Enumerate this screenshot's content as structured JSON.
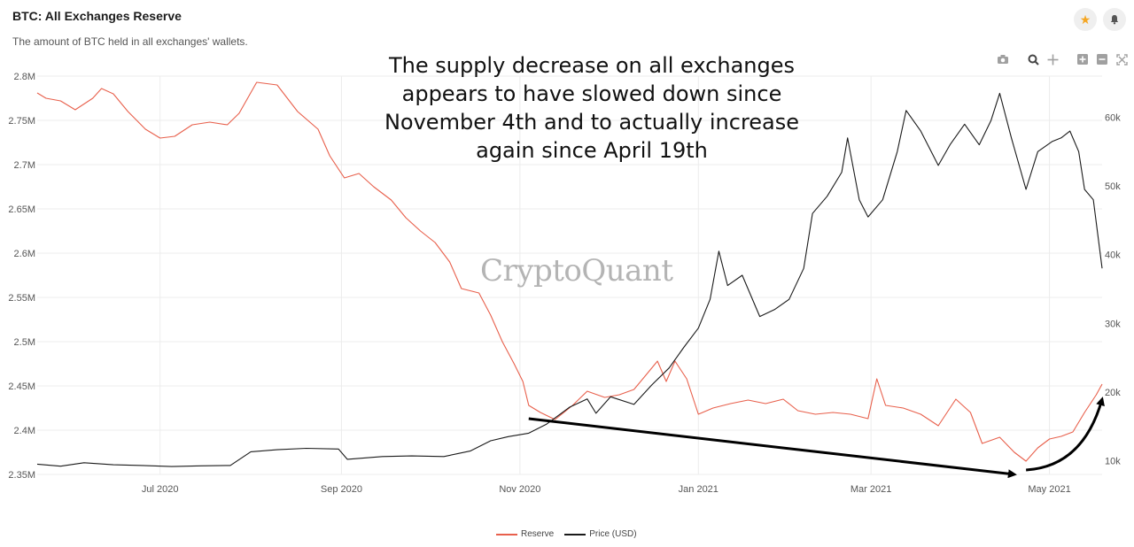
{
  "header": {
    "title": "BTC: All Exchanges Reserve",
    "subtitle": "The amount of BTC held in all exchanges' wallets."
  },
  "icons": {
    "favorite": "star-icon",
    "alerts": "bell-icon",
    "toolbar": [
      "camera-icon",
      "zoom-icon",
      "pan-icon",
      "zoom-in-icon",
      "zoom-out-icon",
      "autoscale-icon"
    ]
  },
  "annotation": "The supply decrease on all exchanges appears to have slowed down since November 4th and to actually increase again since April 19th",
  "watermark": "CryptoQuant",
  "legend": {
    "reserve": "Reserve",
    "price": "Price (USD)"
  },
  "colors": {
    "reserve": "#e8604c",
    "price": "#1a1a1a",
    "arrow": "#000000",
    "grid": "#ececec"
  },
  "chart_data": {
    "type": "line",
    "title": "BTC: All Exchanges Reserve",
    "x_range": [
      "2020-05-20",
      "2021-05-19"
    ],
    "x_ticks": [
      {
        "date": "2020-07-01",
        "label": "Jul 2020"
      },
      {
        "date": "2020-09-01",
        "label": "Sep 2020"
      },
      {
        "date": "2020-11-01",
        "label": "Nov 2020"
      },
      {
        "date": "2021-01-01",
        "label": "Jan 2021"
      },
      {
        "date": "2021-03-01",
        "label": "Mar 2021"
      },
      {
        "date": "2021-05-01",
        "label": "May 2021"
      }
    ],
    "y_left": {
      "range": [
        2350000,
        2800000
      ],
      "ticks": [
        2350000,
        2400000,
        2450000,
        2500000,
        2550000,
        2600000,
        2650000,
        2700000,
        2750000,
        2800000
      ],
      "tick_labels": [
        "2.35M",
        "2.4M",
        "2.45M",
        "2.5M",
        "2.55M",
        "2.6M",
        "2.65M",
        "2.7M",
        "2.75M",
        "2.8M"
      ]
    },
    "y_right": {
      "range": [
        8000,
        66000
      ],
      "ticks": [
        10000,
        20000,
        30000,
        40000,
        50000,
        60000
      ],
      "tick_labels": [
        "10k",
        "20k",
        "30k",
        "40k",
        "50k",
        "60k"
      ]
    },
    "grid": true,
    "legend_position": "bottom-center",
    "series": [
      {
        "name": "Reserve",
        "axis": "left",
        "points": [
          [
            "2020-05-20",
            2781000
          ],
          [
            "2020-05-23",
            2775000
          ],
          [
            "2020-05-28",
            2772000
          ],
          [
            "2020-06-02",
            2762000
          ],
          [
            "2020-06-08",
            2775000
          ],
          [
            "2020-06-11",
            2786000
          ],
          [
            "2020-06-15",
            2780000
          ],
          [
            "2020-06-20",
            2760000
          ],
          [
            "2020-06-26",
            2740000
          ],
          [
            "2020-07-01",
            2730000
          ],
          [
            "2020-07-06",
            2732000
          ],
          [
            "2020-07-12",
            2745000
          ],
          [
            "2020-07-18",
            2748000
          ],
          [
            "2020-07-24",
            2745000
          ],
          [
            "2020-07-28",
            2758000
          ],
          [
            "2020-08-03",
            2793000
          ],
          [
            "2020-08-10",
            2790000
          ],
          [
            "2020-08-17",
            2760000
          ],
          [
            "2020-08-24",
            2740000
          ],
          [
            "2020-08-28",
            2710000
          ],
          [
            "2020-09-02",
            2685000
          ],
          [
            "2020-09-07",
            2690000
          ],
          [
            "2020-09-12",
            2675000
          ],
          [
            "2020-09-18",
            2660000
          ],
          [
            "2020-09-23",
            2640000
          ],
          [
            "2020-09-28",
            2625000
          ],
          [
            "2020-10-03",
            2612000
          ],
          [
            "2020-10-08",
            2590000
          ],
          [
            "2020-10-12",
            2560000
          ],
          [
            "2020-10-18",
            2555000
          ],
          [
            "2020-10-22",
            2530000
          ],
          [
            "2020-10-26",
            2500000
          ],
          [
            "2020-10-30",
            2475000
          ],
          [
            "2020-11-02",
            2455000
          ],
          [
            "2020-11-04",
            2428000
          ],
          [
            "2020-11-08",
            2420000
          ],
          [
            "2020-11-13",
            2412000
          ],
          [
            "2020-11-19",
            2428000
          ],
          [
            "2020-11-24",
            2444000
          ],
          [
            "2020-11-30",
            2437000
          ],
          [
            "2020-12-05",
            2440000
          ],
          [
            "2020-12-10",
            2446000
          ],
          [
            "2020-12-14",
            2462000
          ],
          [
            "2020-12-18",
            2478000
          ],
          [
            "2020-12-21",
            2455000
          ],
          [
            "2020-12-24",
            2478000
          ],
          [
            "2020-12-28",
            2458000
          ],
          [
            "2021-01-01",
            2418000
          ],
          [
            "2021-01-06",
            2425000
          ],
          [
            "2021-01-12",
            2430000
          ],
          [
            "2021-01-18",
            2434000
          ],
          [
            "2021-01-24",
            2430000
          ],
          [
            "2021-01-30",
            2435000
          ],
          [
            "2021-02-04",
            2422000
          ],
          [
            "2021-02-10",
            2418000
          ],
          [
            "2021-02-16",
            2420000
          ],
          [
            "2021-02-22",
            2418000
          ],
          [
            "2021-02-28",
            2413000
          ],
          [
            "2021-03-03",
            2458000
          ],
          [
            "2021-03-06",
            2428000
          ],
          [
            "2021-03-12",
            2425000
          ],
          [
            "2021-03-18",
            2418000
          ],
          [
            "2021-03-24",
            2405000
          ],
          [
            "2021-03-30",
            2435000
          ],
          [
            "2021-04-04",
            2420000
          ],
          [
            "2021-04-08",
            2385000
          ],
          [
            "2021-04-14",
            2392000
          ],
          [
            "2021-04-19",
            2375000
          ],
          [
            "2021-04-23",
            2365000
          ],
          [
            "2021-04-27",
            2380000
          ],
          [
            "2021-05-01",
            2390000
          ],
          [
            "2021-05-05",
            2393000
          ],
          [
            "2021-05-09",
            2398000
          ],
          [
            "2021-05-13",
            2420000
          ],
          [
            "2021-05-17",
            2440000
          ],
          [
            "2021-05-19",
            2452000
          ]
        ]
      },
      {
        "name": "Price (USD)",
        "axis": "right",
        "points": [
          [
            "2020-05-20",
            9500
          ],
          [
            "2020-05-28",
            9200
          ],
          [
            "2020-06-05",
            9700
          ],
          [
            "2020-06-15",
            9400
          ],
          [
            "2020-06-25",
            9300
          ],
          [
            "2020-07-05",
            9150
          ],
          [
            "2020-07-15",
            9250
          ],
          [
            "2020-07-25",
            9300
          ],
          [
            "2020-08-01",
            11300
          ],
          [
            "2020-08-10",
            11600
          ],
          [
            "2020-08-20",
            11800
          ],
          [
            "2020-08-31",
            11700
          ],
          [
            "2020-09-03",
            10200
          ],
          [
            "2020-09-15",
            10600
          ],
          [
            "2020-09-25",
            10700
          ],
          [
            "2020-10-06",
            10600
          ],
          [
            "2020-10-15",
            11400
          ],
          [
            "2020-10-22",
            12900
          ],
          [
            "2020-10-28",
            13500
          ],
          [
            "2020-11-04",
            14000
          ],
          [
            "2020-11-10",
            15300
          ],
          [
            "2020-11-18",
            17800
          ],
          [
            "2020-11-24",
            19000
          ],
          [
            "2020-11-27",
            16900
          ],
          [
            "2020-12-02",
            19300
          ],
          [
            "2020-12-10",
            18200
          ],
          [
            "2020-12-16",
            21000
          ],
          [
            "2020-12-22",
            23500
          ],
          [
            "2020-12-27",
            26500
          ],
          [
            "2021-01-01",
            29300
          ],
          [
            "2021-01-05",
            33500
          ],
          [
            "2021-01-08",
            40500
          ],
          [
            "2021-01-11",
            35500
          ],
          [
            "2021-01-16",
            37000
          ],
          [
            "2021-01-22",
            31000
          ],
          [
            "2021-01-27",
            32000
          ],
          [
            "2021-02-01",
            33500
          ],
          [
            "2021-02-06",
            38000
          ],
          [
            "2021-02-09",
            46000
          ],
          [
            "2021-02-14",
            48500
          ],
          [
            "2021-02-19",
            52000
          ],
          [
            "2021-02-21",
            57000
          ],
          [
            "2021-02-25",
            48000
          ],
          [
            "2021-02-28",
            45500
          ],
          [
            "2021-03-05",
            48000
          ],
          [
            "2021-03-10",
            55000
          ],
          [
            "2021-03-13",
            61000
          ],
          [
            "2021-03-18",
            58000
          ],
          [
            "2021-03-24",
            53000
          ],
          [
            "2021-03-28",
            56000
          ],
          [
            "2021-04-02",
            59000
          ],
          [
            "2021-04-07",
            56000
          ],
          [
            "2021-04-11",
            59500
          ],
          [
            "2021-04-14",
            63500
          ],
          [
            "2021-04-18",
            57000
          ],
          [
            "2021-04-23",
            49500
          ],
          [
            "2021-04-27",
            55000
          ],
          [
            "2021-05-02",
            56500
          ],
          [
            "2021-05-05",
            57000
          ],
          [
            "2021-05-08",
            58000
          ],
          [
            "2021-05-11",
            55000
          ],
          [
            "2021-05-13",
            49500
          ],
          [
            "2021-05-16",
            48000
          ],
          [
            "2021-05-19",
            38000
          ]
        ]
      }
    ],
    "arrows": [
      {
        "from": [
          "2020-11-04",
          2413000
        ],
        "to": [
          "2021-04-19",
          2350000
        ],
        "shape": "straight"
      },
      {
        "from": [
          "2021-04-23",
          2355000
        ],
        "to": [
          "2021-05-19",
          2435000
        ],
        "shape": "curved"
      }
    ]
  }
}
